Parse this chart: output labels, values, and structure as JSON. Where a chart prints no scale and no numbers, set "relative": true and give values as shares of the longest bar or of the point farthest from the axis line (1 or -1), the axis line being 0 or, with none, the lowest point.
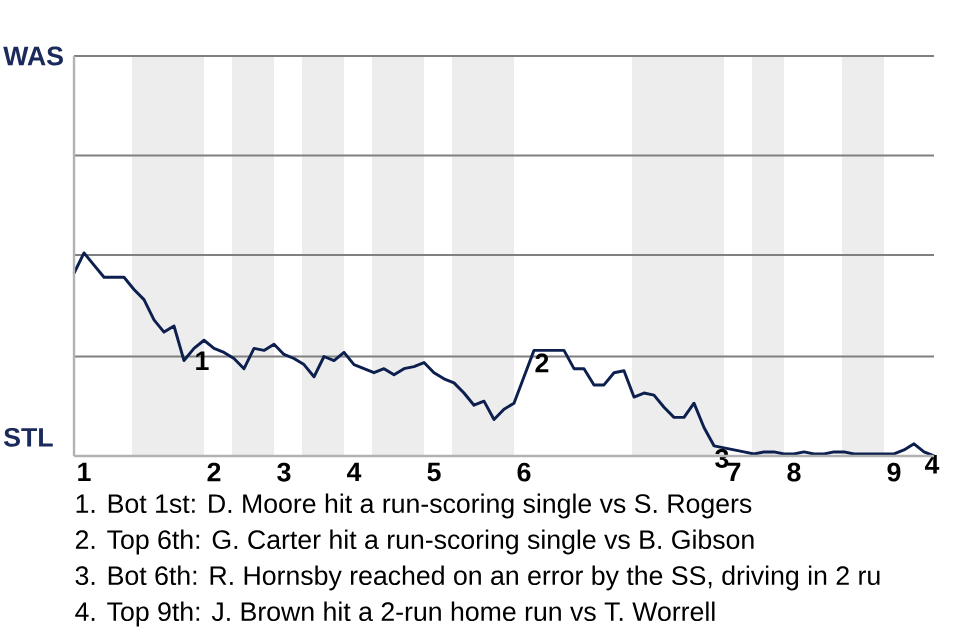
{
  "chart_data": {
    "type": "line",
    "relative": true,
    "categories": [
      null,
      "1",
      null,
      null,
      null,
      null,
      null,
      null,
      null,
      null,
      null,
      null,
      null,
      null,
      "2",
      null,
      null,
      null,
      null,
      null,
      null,
      "3",
      null,
      null,
      null,
      null,
      null,
      null,
      "4",
      null,
      null,
      null,
      null,
      null,
      null,
      null,
      "5",
      null,
      null,
      null,
      null,
      null,
      null,
      null,
      null,
      "6",
      null,
      null,
      null,
      null,
      null,
      null,
      null,
      null,
      null,
      null,
      null,
      null,
      null,
      null,
      null,
      null,
      null,
      null,
      null,
      null,
      "7",
      null,
      null,
      null,
      null,
      null,
      "8",
      null,
      null,
      null,
      null,
      null,
      null,
      null,
      null,
      null,
      "9",
      null,
      null,
      null,
      null
    ],
    "series": [
      {
        "color": "#0d1f4f",
        "values": [
          0.9,
          1,
          0.94,
          0.88,
          0.88,
          0.88,
          0.82,
          0.77,
          0.67,
          0.61,
          0.64,
          0.47,
          0.53,
          0.57,
          0.53,
          0.51,
          0.48,
          0.43,
          0.53,
          0.52,
          0.55,
          0.5,
          0.48,
          0.45,
          0.39,
          0.49,
          0.47,
          0.51,
          0.45,
          0.43,
          0.41,
          0.43,
          0.4,
          0.43,
          0.44,
          0.46,
          0.41,
          0.38,
          0.36,
          0.31,
          0.25,
          0.27,
          0.18,
          0.23,
          0.26,
          0.39,
          0.52,
          0.52,
          0.52,
          0.52,
          0.43,
          0.43,
          0.35,
          0.35,
          0.41,
          0.42,
          0.29,
          0.31,
          0.3,
          0.24,
          0.19,
          0.19,
          0.26,
          0.14,
          0.05,
          0.04,
          0.03,
          0.02,
          0.01,
          0.02,
          0.02,
          0.01,
          0.01,
          0.02,
          0.01,
          0.01,
          0.02,
          0.02,
          0.01,
          0.01,
          0.01,
          0.01,
          0.01,
          0.03,
          0.06,
          0.02,
          0
        ]
      }
    ],
    "ref_lines": [
      {
        "axis": "y",
        "value": 0.49,
        "color": "#808080"
      },
      {
        "axis": "y",
        "value": 0.99,
        "color": "#808080"
      },
      {
        "axis": "y",
        "value": 1.48,
        "color": "#808080"
      },
      {
        "axis": "y",
        "value": 1.97,
        "color": "#808080"
      }
    ],
    "annotations": [
      "WAS",
      "STL",
      "1",
      "2",
      "3",
      "4",
      "1. Bot 1st: D. Moore hit a run-scoring single vs S. Rogers",
      "2. Top 6th: G. Carter hit a run-scoring single vs B. Gibson",
      "3. Bot 6th: R. Hornsby reached on an error by the SS, driving in 2 ru",
      "4. Top 9th: J. Brown hit a 2-run home run vs T. Worrell"
    ]
  }
}
